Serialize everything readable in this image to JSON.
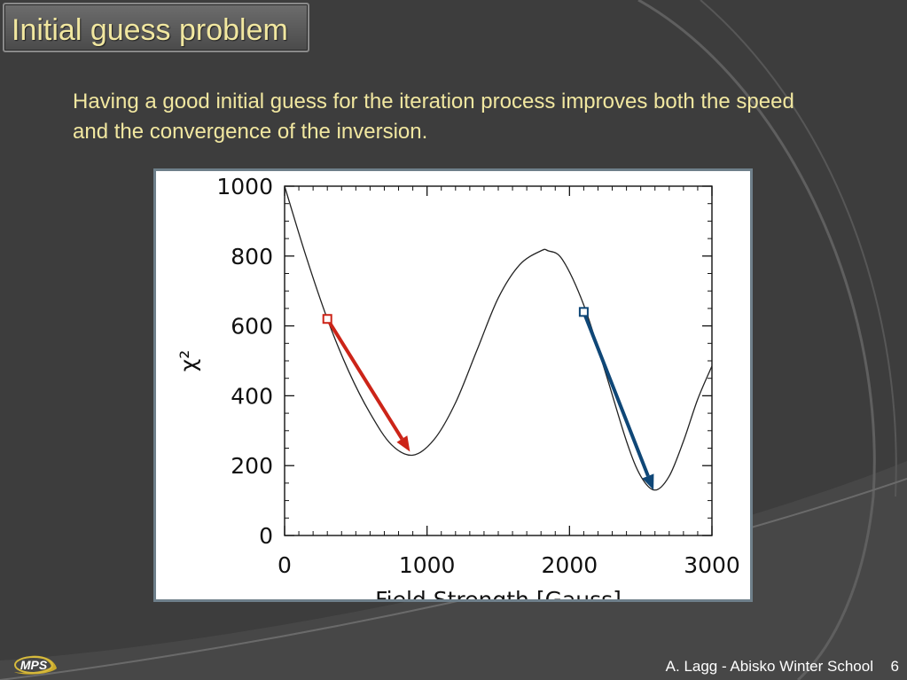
{
  "slide": {
    "title": "Initial guess problem",
    "body": "Having a good initial guess for the iteration process improves both the speed and the convergence of the inversion.",
    "footer": "A. Lagg - Abisko Winter School",
    "page_number": "6",
    "logo_text": "MPS",
    "title_color": "#f1e7a0"
  },
  "chart_data": {
    "type": "line",
    "xlabel": "Field Strength [Gauss]",
    "ylabel": "χ²",
    "xlim": [
      0,
      3000
    ],
    "ylim": [
      0,
      1000
    ],
    "x_ticks": [
      0,
      1000,
      2000,
      3000
    ],
    "y_ticks": [
      0,
      200,
      400,
      600,
      800,
      1000
    ],
    "grid": false,
    "series": [
      {
        "color": "#222222",
        "x": [
          0,
          150,
          300,
          450,
          600,
          750,
          900,
          1050,
          1200,
          1350,
          1500,
          1650,
          1800,
          1850,
          1950,
          2100,
          2250,
          2400,
          2500,
          2600,
          2700,
          2800,
          2900,
          3000
        ],
        "y": [
          1000,
          800,
          620,
          470,
          350,
          260,
          230,
          275,
          380,
          530,
          680,
          775,
          815,
          815,
          790,
          660,
          470,
          270,
          170,
          130,
          170,
          270,
          390,
          485
        ]
      }
    ],
    "annotations": [
      {
        "type": "arrow",
        "color": "#cc2418",
        "from": [
          300,
          620
        ],
        "to": [
          880,
          240
        ]
      },
      {
        "type": "arrow",
        "color": "#0f4777",
        "from": [
          2100,
          640
        ],
        "to": [
          2590,
          130
        ]
      }
    ],
    "colors": {
      "red_arrow": "#cc2418",
      "blue_arrow": "#0f4777",
      "curve": "#222222"
    }
  }
}
